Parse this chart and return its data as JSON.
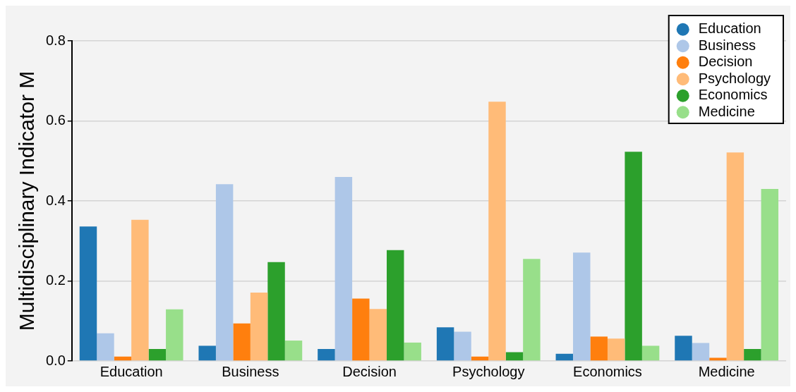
{
  "chart_data": {
    "type": "bar",
    "ylabel": "Multidisciplinary Indicator M",
    "categories": [
      "Education",
      "Business",
      "Decision",
      "Psychology",
      "Economics",
      "Medicine"
    ],
    "series": [
      {
        "name": "Education",
        "color": "#1f77b4",
        "values": [
          0.336,
          0.038,
          0.03,
          0.084,
          0.018,
          0.063
        ]
      },
      {
        "name": "Business",
        "color": "#aec7e8",
        "values": [
          0.069,
          0.442,
          0.46,
          0.073,
          0.271,
          0.045
        ]
      },
      {
        "name": "Decision",
        "color": "#ff7f0e",
        "values": [
          0.011,
          0.094,
          0.156,
          0.011,
          0.061,
          0.008
        ]
      },
      {
        "name": "Psychology",
        "color": "#ffbb78",
        "values": [
          0.353,
          0.171,
          0.13,
          0.648,
          0.056,
          0.521
        ]
      },
      {
        "name": "Economics",
        "color": "#2ca02c",
        "values": [
          0.03,
          0.247,
          0.277,
          0.022,
          0.523,
          0.03
        ]
      },
      {
        "name": "Medicine",
        "color": "#98df8a",
        "values": [
          0.129,
          0.051,
          0.046,
          0.255,
          0.038,
          0.43
        ]
      }
    ],
    "ylim": [
      0,
      0.8
    ],
    "yticks": [
      {
        "value": 0,
        "label": "0.0"
      },
      {
        "value": 0.2,
        "label": "0.2"
      },
      {
        "value": 0.4,
        "label": "0.4"
      },
      {
        "value": 0.6,
        "label": "0.6"
      },
      {
        "value": 0.8,
        "label": "0.8"
      }
    ],
    "grid": "y",
    "legend": "top right"
  }
}
